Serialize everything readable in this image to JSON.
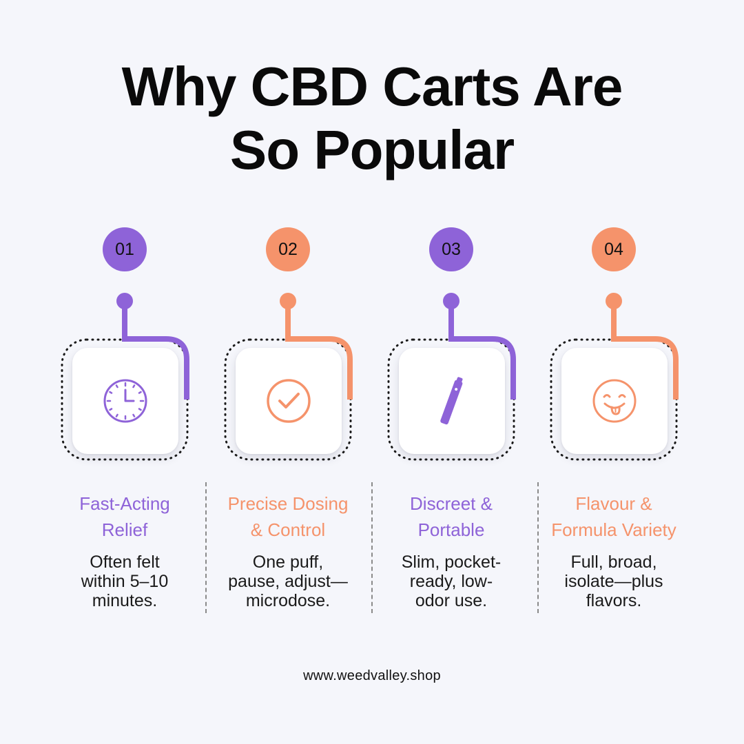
{
  "title": {
    "line1": "Why CBD Carts Are",
    "line2": "So Popular"
  },
  "colors": {
    "purple": "#8e63d8",
    "orange": "#f5936b",
    "text": "#0a0a0a"
  },
  "steps": [
    {
      "number": "01",
      "heading_line1": "Fast-Acting",
      "heading_line2": "Relief",
      "desc_line1": "Often felt",
      "desc_line2": "within 5–10",
      "desc_line3": "minutes.",
      "icon": "clock-icon",
      "color": "purple"
    },
    {
      "number": "02",
      "heading_line1": "Precise Dosing",
      "heading_line2": "& Control",
      "desc_line1": "One puff,",
      "desc_line2": "pause, adjust—",
      "desc_line3": "microdose.",
      "icon": "check-circle-icon",
      "color": "orange"
    },
    {
      "number": "03",
      "heading_line1": "Discreet &",
      "heading_line2": "Portable",
      "desc_line1": "Slim, pocket-",
      "desc_line2": "ready, low-",
      "desc_line3": "odor use.",
      "icon": "vape-pen-icon",
      "color": "purple"
    },
    {
      "number": "04",
      "heading_line1": "Flavour &",
      "heading_line2": "Formula Variety",
      "desc_line1": "Full, broad,",
      "desc_line2": "isolate—plus",
      "desc_line3": "flavors.",
      "icon": "tongue-smile-icon",
      "color": "orange"
    }
  ],
  "footer": {
    "url": "www.weedvalley.shop"
  }
}
